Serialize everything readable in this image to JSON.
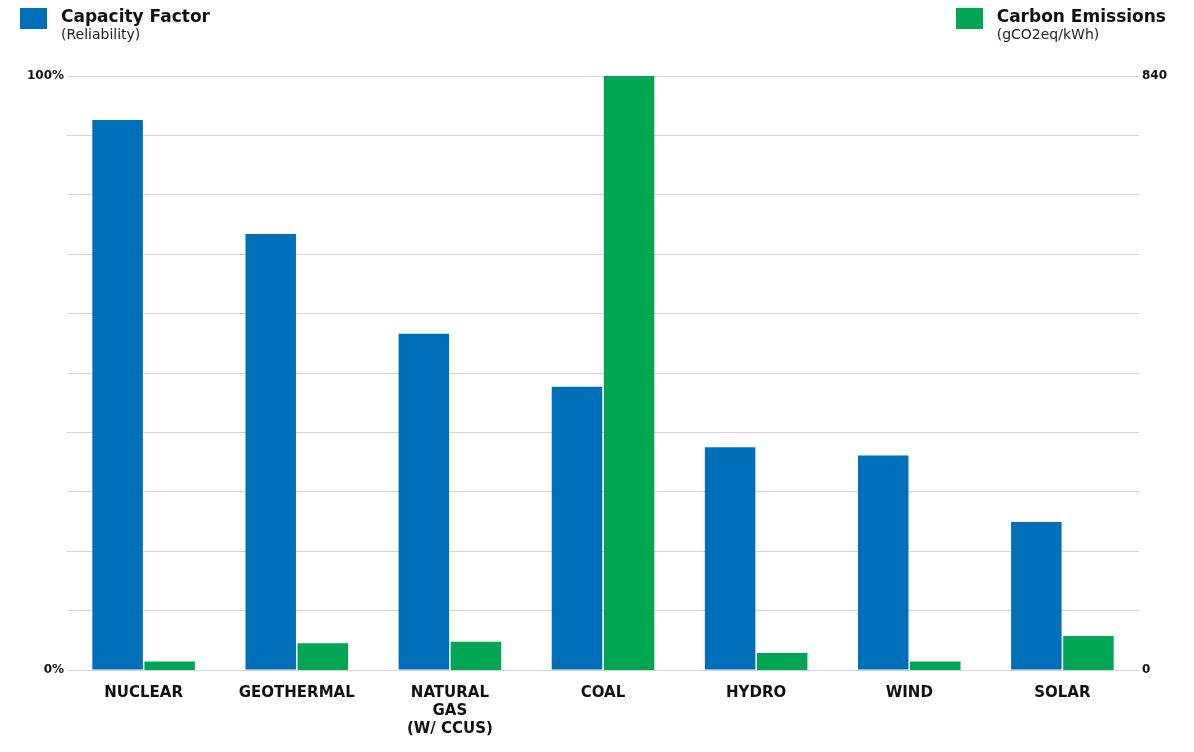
{
  "chart_data": {
    "type": "bar",
    "ylabel": "(Reliability)",
    "y2label": "(gCO2eq/kWh)",
    "categories": [
      "NUCLEAR",
      "GEOTHERMAL",
      "NATURAL GAS (W/ CCUS)",
      "COAL",
      "HYDRO",
      "WIND",
      "SOLAR"
    ],
    "series": [
      {
        "name": "Capacity Factor",
        "color": "#006fb9",
        "values": [
          92.6,
          73.4,
          56.6,
          47.7,
          37.5,
          36.1,
          24.9
        ]
      },
      {
        "name": "Carbon Emissions",
        "color": "#00a651",
        "axis": "y2",
        "values": [
          12,
          38,
          40,
          840,
          24,
          12,
          48
        ]
      }
    ],
    "ylim": [
      0,
      100
    ],
    "yticks": [
      {
        "value": 0,
        "label": "0%"
      },
      {
        "value": 10,
        "label": null
      },
      {
        "value": 20,
        "label": null
      },
      {
        "value": 30,
        "label": null
      },
      {
        "value": 40,
        "label": null
      },
      {
        "value": 50,
        "label": null
      },
      {
        "value": 60,
        "label": null
      },
      {
        "value": 70,
        "label": null
      },
      {
        "value": 80,
        "label": null
      },
      {
        "value": 90,
        "label": null
      },
      {
        "value": 100,
        "label": "100%"
      }
    ],
    "y2lim": [
      0,
      840
    ],
    "y2ticks": [
      0,
      840
    ],
    "grid": "y",
    "legend": "top"
  }
}
